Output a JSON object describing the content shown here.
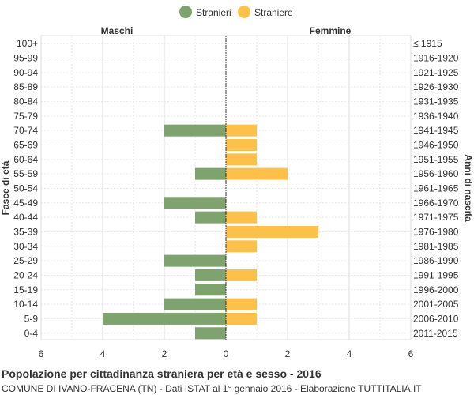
{
  "chart_data": {
    "type": "bar",
    "orientation": "horizontal-population-pyramid",
    "title": "Popolazione per cittadinanza straniera per età e sesso - 2016",
    "subtitle": "COMUNE DI IVANO-FRACENA (TN) - Dati ISTAT al 1° gennaio 2016 - Elaborazione TUTTITALIA.IT",
    "left_header": "Maschi",
    "right_header": "Femmine",
    "ylabel_left": "Fasce di età",
    "ylabel_right": "Anni di nascita",
    "legend": [
      {
        "name": "Stranieri",
        "color": "#7fa36e"
      },
      {
        "name": "Straniere",
        "color": "#fdc14a"
      }
    ],
    "age_groups": [
      "100+",
      "95-99",
      "90-94",
      "85-89",
      "80-84",
      "75-79",
      "70-74",
      "65-69",
      "60-64",
      "55-59",
      "50-54",
      "45-49",
      "40-44",
      "35-39",
      "30-34",
      "25-29",
      "20-24",
      "15-19",
      "10-14",
      "5-9",
      "0-4"
    ],
    "birth_years": [
      "≤ 1915",
      "1916-1920",
      "1921-1925",
      "1926-1930",
      "1931-1935",
      "1936-1940",
      "1941-1945",
      "1946-1950",
      "1951-1955",
      "1956-1960",
      "1961-1965",
      "1966-1970",
      "1971-1975",
      "1976-1980",
      "1981-1985",
      "1986-1990",
      "1991-1995",
      "1996-2000",
      "2001-2005",
      "2006-2010",
      "2011-2015"
    ],
    "series": [
      {
        "name": "Stranieri",
        "side": "left",
        "values": [
          0,
          0,
          0,
          0,
          0,
          0,
          2,
          0,
          0,
          1,
          0,
          2,
          1,
          0,
          0,
          2,
          1,
          1,
          2,
          4,
          1
        ]
      },
      {
        "name": "Straniere",
        "side": "right",
        "values": [
          0,
          0,
          0,
          0,
          0,
          0,
          1,
          1,
          1,
          2,
          0,
          0,
          1,
          3,
          1,
          0,
          1,
          0,
          1,
          1,
          0
        ]
      }
    ],
    "xlim": [
      -6,
      6
    ],
    "xticks": [
      {
        "value": -6,
        "label": "6"
      },
      {
        "value": -4,
        "label": "4"
      },
      {
        "value": -2,
        "label": "2"
      },
      {
        "value": 0,
        "label": "0"
      },
      {
        "value": 2,
        "label": "2"
      },
      {
        "value": 4,
        "label": "4"
      },
      {
        "value": 6,
        "label": "6"
      }
    ]
  }
}
